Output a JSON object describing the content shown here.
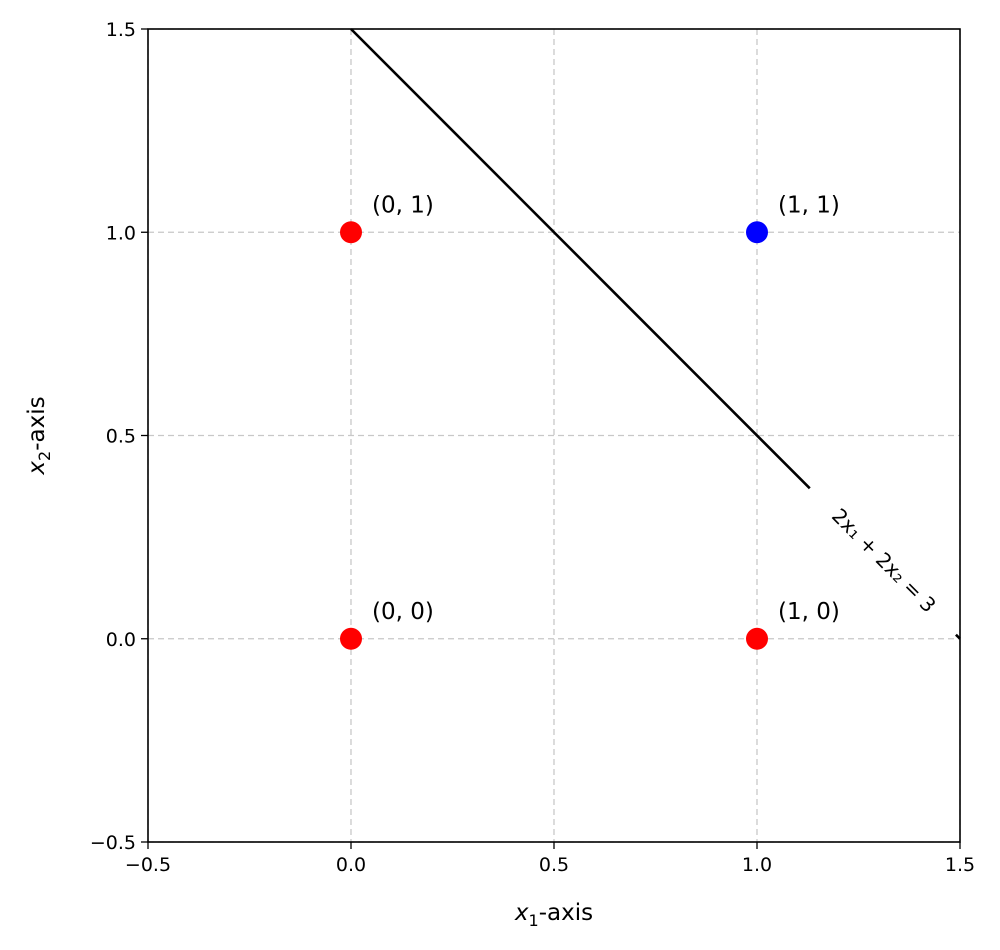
{
  "chart_data": {
    "type": "scatter",
    "xlim": [
      -0.5,
      1.5
    ],
    "ylim": [
      -0.5,
      1.5
    ],
    "xticks": [
      -0.5,
      0.0,
      0.5,
      1.0,
      1.5
    ],
    "yticks": [
      -0.5,
      0.0,
      0.5,
      1.0,
      1.5
    ],
    "xtick_labels": [
      "−0.5",
      "0.0",
      "0.5",
      "1.0",
      "1.5"
    ],
    "ytick_labels": [
      "−0.5",
      "0.0",
      "0.5",
      "1.0",
      "1.5"
    ],
    "xlabel": {
      "var": "x",
      "sub": "1",
      "suffix": "-axis"
    },
    "ylabel": {
      "var": "x",
      "sub": "2",
      "suffix": "-axis"
    },
    "grid": true,
    "points": [
      {
        "x": 0,
        "y": 0,
        "label": "(0, 0)",
        "color": "#ff0000"
      },
      {
        "x": 0,
        "y": 1,
        "label": "(0, 1)",
        "color": "#ff0000"
      },
      {
        "x": 1,
        "y": 0,
        "label": "(1, 0)",
        "color": "#ff0000"
      },
      {
        "x": 1,
        "y": 1,
        "label": "(1, 1)",
        "color": "#0000ff"
      }
    ],
    "decision_line": {
      "equation": "2x₁ + 2x₂ = 3",
      "a": 2,
      "b": 2,
      "c": 3,
      "color": "#000000"
    }
  }
}
